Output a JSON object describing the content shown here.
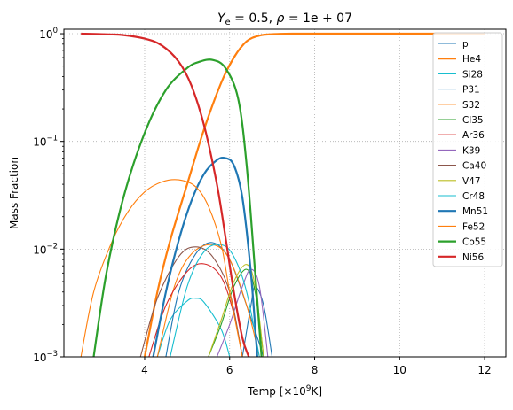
{
  "chart_data": {
    "type": "line",
    "title": "Y_e = 0.5, ρ = 1e+07",
    "title_parts": {
      "ye": "Y",
      "ye_sub": "e",
      "ye_val": " = 0.5, ",
      "rho": "ρ",
      "rho_val": " = 1e + 07"
    },
    "xlabel": "Temp [×10⁹K]",
    "xlabel_parts": {
      "prefix": "Temp [×10",
      "sup": "9",
      "suffix": "K]"
    },
    "ylabel": "Mass Fraction",
    "xlim": [
      2.1,
      12.5
    ],
    "ylim": [
      0.001,
      1.1
    ],
    "yscale": "log",
    "grid": true,
    "legend_position": "top-right",
    "x_ticks": [
      4,
      6,
      8,
      10,
      12
    ],
    "x_tick_labels": [
      "4",
      "6",
      "8",
      "10",
      "12"
    ],
    "y_ticks": [
      0.001,
      0.01,
      0.1,
      1
    ],
    "y_tick_labels": [
      {
        "base": "10",
        "exp": "−3"
      },
      {
        "base": "10",
        "exp": "−2"
      },
      {
        "base": "10",
        "exp": "−1"
      },
      {
        "base": "10",
        "exp": "0"
      }
    ],
    "series": [
      {
        "name": "p",
        "color": "#1f77b4",
        "width": 1,
        "x": [
          6.3,
          6.5,
          6.6,
          6.8,
          7.0
        ],
        "y": [
          0.001,
          0.003,
          0.0045,
          0.003,
          0.001
        ]
      },
      {
        "name": "He4",
        "color": "#ff7f0e",
        "width": 2,
        "x": [
          4.0,
          4.3,
          4.6,
          5.0,
          5.4,
          5.8,
          6.1,
          6.4,
          6.7,
          7.0,
          7.5,
          8.0,
          9.0,
          10.0,
          11.0,
          12.0
        ],
        "y": [
          0.001,
          0.004,
          0.012,
          0.04,
          0.13,
          0.35,
          0.6,
          0.85,
          0.96,
          0.99,
          1.0,
          1.0,
          1.0,
          1.0,
          1.0,
          1.0
        ]
      },
      {
        "name": "Si28",
        "color": "#17becf",
        "width": 1,
        "x": [
          4.3,
          4.6,
          5.0,
          5.2,
          5.4,
          5.8,
          6.0
        ],
        "y": [
          0.001,
          0.0022,
          0.0033,
          0.0035,
          0.0032,
          0.0018,
          0.001
        ]
      },
      {
        "name": "P31",
        "color": "#1f77b4",
        "width": 1,
        "x": [
          4.5,
          4.8,
          5.2,
          5.6,
          6.0,
          6.4,
          6.8
        ],
        "y": [
          0.001,
          0.004,
          0.009,
          0.0115,
          0.008,
          0.003,
          0.001
        ]
      },
      {
        "name": "S32",
        "color": "#ff7f0e",
        "width": 1,
        "x": [
          4.3,
          4.7,
          5.1,
          5.6,
          6.0,
          6.4,
          6.7
        ],
        "y": [
          0.001,
          0.0045,
          0.009,
          0.011,
          0.008,
          0.003,
          0.001
        ]
      },
      {
        "name": "Cl35",
        "color": "#2ca02c",
        "width": 1,
        "x": [
          5.5,
          5.8,
          6.1,
          6.4,
          6.6,
          6.8
        ],
        "y": [
          0.001,
          0.002,
          0.0045,
          0.0065,
          0.004,
          0.001
        ]
      },
      {
        "name": "Ar36",
        "color": "#d62728",
        "width": 1,
        "x": [
          4.1,
          4.5,
          5.0,
          5.4,
          5.8,
          6.1,
          6.3
        ],
        "y": [
          0.001,
          0.003,
          0.0062,
          0.0073,
          0.0055,
          0.0025,
          0.001
        ]
      },
      {
        "name": "K39",
        "color": "#9467bd",
        "width": 1,
        "x": [
          5.7,
          6.0,
          6.3,
          6.5,
          6.7,
          6.9
        ],
        "y": [
          0.001,
          0.002,
          0.0045,
          0.0065,
          0.0045,
          0.001
        ]
      },
      {
        "name": "Ca40",
        "color": "#8c564b",
        "width": 1,
        "x": [
          3.9,
          4.3,
          4.8,
          5.2,
          5.6,
          6.0,
          6.3
        ],
        "y": [
          0.001,
          0.0035,
          0.0085,
          0.0105,
          0.0085,
          0.004,
          0.001
        ]
      },
      {
        "name": "V47",
        "color": "#bcbd22",
        "width": 1,
        "x": [
          5.5,
          5.8,
          6.1,
          6.4,
          6.6,
          6.8
        ],
        "y": [
          0.001,
          0.0022,
          0.005,
          0.0072,
          0.0045,
          0.001
        ]
      },
      {
        "name": "Cr48",
        "color": "#17becf",
        "width": 1,
        "x": [
          4.6,
          5.0,
          5.4,
          5.8,
          6.1,
          6.4,
          6.7
        ],
        "y": [
          0.001,
          0.0045,
          0.0095,
          0.011,
          0.0085,
          0.004,
          0.001
        ]
      },
      {
        "name": "Mn51",
        "color": "#1f77b4",
        "width": 2,
        "x": [
          4.2,
          4.5,
          4.8,
          5.1,
          5.4,
          5.7,
          5.9,
          6.1,
          6.3,
          6.5,
          6.65
        ],
        "y": [
          0.001,
          0.004,
          0.012,
          0.028,
          0.05,
          0.067,
          0.07,
          0.06,
          0.03,
          0.006,
          0.001
        ]
      },
      {
        "name": "Fe52",
        "color": "#ff7f0e",
        "width": 1,
        "x": [
          2.5,
          2.8,
          3.2,
          3.6,
          4.0,
          4.4,
          4.8,
          5.2,
          5.5,
          5.8,
          6.0,
          6.3
        ],
        "y": [
          0.001,
          0.004,
          0.011,
          0.022,
          0.034,
          0.042,
          0.044,
          0.038,
          0.025,
          0.011,
          0.004,
          0.001
        ]
      },
      {
        "name": "Co55",
        "color": "#2ca02c",
        "width": 2,
        "x": [
          2.8,
          3.1,
          3.5,
          4.0,
          4.5,
          5.0,
          5.3,
          5.6,
          5.9,
          6.2,
          6.4,
          6.6,
          6.75
        ],
        "y": [
          0.001,
          0.006,
          0.03,
          0.12,
          0.3,
          0.48,
          0.55,
          0.57,
          0.48,
          0.25,
          0.06,
          0.006,
          0.001
        ]
      },
      {
        "name": "Ni56",
        "color": "#d62728",
        "width": 2,
        "x": [
          2.5,
          3.0,
          3.5,
          4.0,
          4.4,
          4.8,
          5.1,
          5.4,
          5.7,
          5.9,
          6.1,
          6.3,
          6.45
        ],
        "y": [
          1.0,
          0.99,
          0.97,
          0.9,
          0.78,
          0.55,
          0.33,
          0.14,
          0.04,
          0.013,
          0.004,
          0.0015,
          0.001
        ]
      }
    ]
  }
}
